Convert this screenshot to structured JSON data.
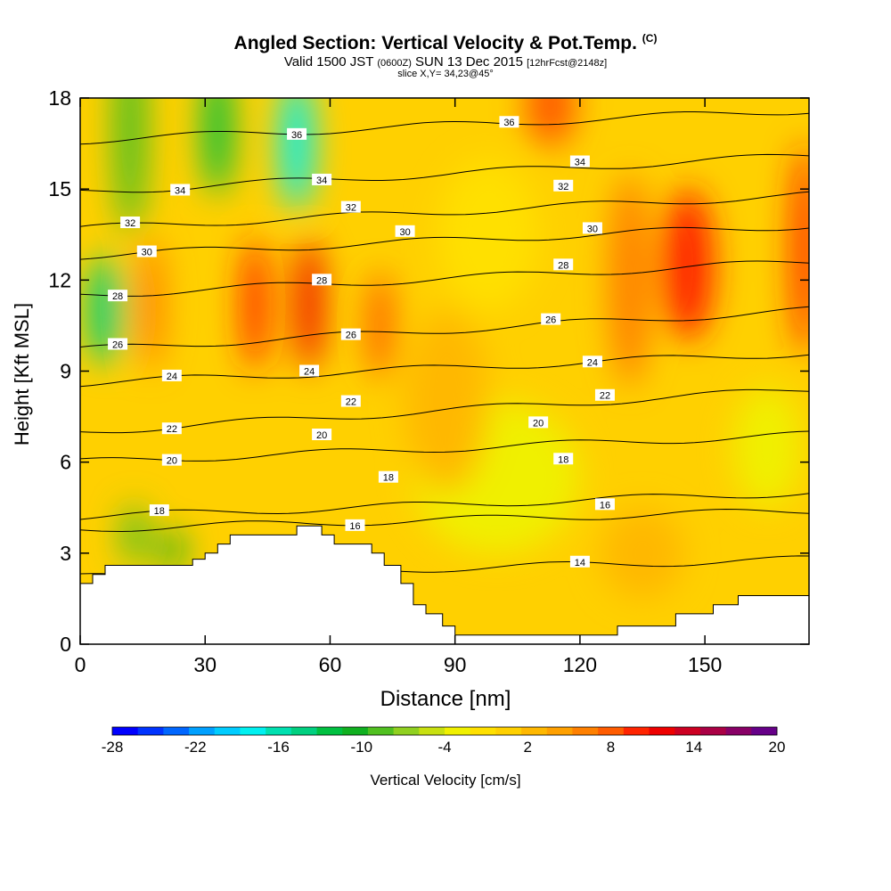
{
  "header": {
    "title": "Angled Section: Vertical Velocity & Pot.Temp.",
    "title_mark": "(C)",
    "valid_prefix": "Valid 1500 JST",
    "valid_utc": "(0600Z)",
    "valid_date": "SUN 13 Dec 2015",
    "forecast_note": "[12hrFcst@2148z]",
    "slice_note": "slice X,Y= 34,23@45°"
  },
  "chart_data": {
    "type": "heatmap",
    "xlabel": "Distance [nm]",
    "ylabel": "Height [Kft MSL]",
    "xlim": [
      0,
      175
    ],
    "ylim": [
      0,
      18
    ],
    "x_ticks": [
      0,
      30,
      60,
      90,
      120,
      150
    ],
    "y_ticks": [
      0,
      3,
      6,
      9,
      12,
      15,
      18
    ],
    "colorbar": {
      "label": "Vertical Velocity [cm/s]",
      "range": [
        -28,
        20
      ],
      "tick_labels": [
        -28,
        -22,
        -16,
        -10,
        -4,
        2,
        8,
        14,
        20
      ],
      "colors": [
        "#0000ff",
        "#0033ff",
        "#0066ff",
        "#00a0ff",
        "#00ccff",
        "#00f0f0",
        "#00e0b0",
        "#00d080",
        "#00c040",
        "#10b020",
        "#50c020",
        "#90d020",
        "#c8e010",
        "#f0f000",
        "#ffe000",
        "#ffd000",
        "#ffb800",
        "#ffa000",
        "#ff8000",
        "#ff5c00",
        "#ff2400",
        "#ee0000",
        "#cc0022",
        "#aa0044",
        "#880066",
        "#660088"
      ]
    },
    "background_value": 0,
    "velocity_cells": [
      {
        "x": 6,
        "y": 11,
        "sx": 4,
        "sy": 1.8,
        "v": -14
      },
      {
        "x": 12,
        "y": 17,
        "sx": 4,
        "sy": 3.5,
        "v": -9
      },
      {
        "x": 33,
        "y": 17,
        "sx": 3.5,
        "sy": 2.2,
        "v": -12
      },
      {
        "x": 52,
        "y": 16.5,
        "sx": 4,
        "sy": 2.2,
        "v": -18
      },
      {
        "x": 13,
        "y": 3.6,
        "sx": 3,
        "sy": 1,
        "v": -9
      },
      {
        "x": 22,
        "y": 3.1,
        "sx": 3,
        "sy": 0.6,
        "v": -10
      },
      {
        "x": 17,
        "y": 11.2,
        "sx": 3,
        "sy": 2.2,
        "v": 7
      },
      {
        "x": 42,
        "y": 11.2,
        "sx": 3,
        "sy": 2.2,
        "v": 10
      },
      {
        "x": 55,
        "y": 11.2,
        "sx": 3,
        "sy": 2.2,
        "v": 11
      },
      {
        "x": 72,
        "y": 10.5,
        "sx": 3,
        "sy": 1.8,
        "v": 8
      },
      {
        "x": 113,
        "y": 17.8,
        "sx": 6,
        "sy": 1.4,
        "v": 8
      },
      {
        "x": 132,
        "y": 12,
        "sx": 5,
        "sy": 3.5,
        "v": 7
      },
      {
        "x": 146,
        "y": 12.5,
        "sx": 6,
        "sy": 2.5,
        "v": 10
      },
      {
        "x": 174,
        "y": 13,
        "sx": 3,
        "sy": 3.5,
        "v": 9
      },
      {
        "x": 98,
        "y": 13.5,
        "sx": 12,
        "sy": 2.5,
        "v": -2
      },
      {
        "x": 100,
        "y": 5.5,
        "sx": 20,
        "sy": 2.5,
        "v": -2.5
      },
      {
        "x": 135,
        "y": 3,
        "sx": 10,
        "sy": 1.5,
        "v": 3
      },
      {
        "x": 165,
        "y": 6.5,
        "sx": 8,
        "sy": 2,
        "v": -3
      },
      {
        "x": 88,
        "y": 8,
        "sx": 10,
        "sy": 3,
        "v": 2.5
      }
    ],
    "terrain": [
      [
        0,
        2
      ],
      [
        3,
        2
      ],
      [
        3,
        2.3
      ],
      [
        6,
        2.3
      ],
      [
        6,
        2.6
      ],
      [
        18,
        2.6
      ],
      [
        27,
        2.6
      ],
      [
        27,
        2.8
      ],
      [
        30,
        2.8
      ],
      [
        30,
        3.0
      ],
      [
        33,
        3.0
      ],
      [
        33,
        3.3
      ],
      [
        36,
        3.3
      ],
      [
        36,
        3.6
      ],
      [
        52,
        3.6
      ],
      [
        52,
        3.9
      ],
      [
        58,
        3.9
      ],
      [
        58,
        3.6
      ],
      [
        61,
        3.6
      ],
      [
        61,
        3.3
      ],
      [
        70,
        3.3
      ],
      [
        70,
        3.0
      ],
      [
        73,
        3.0
      ],
      [
        73,
        2.6
      ],
      [
        77,
        2.6
      ],
      [
        77,
        2.0
      ],
      [
        80,
        2.0
      ],
      [
        80,
        1.3
      ],
      [
        83,
        1.3
      ],
      [
        83,
        1.0
      ],
      [
        87,
        1.0
      ],
      [
        87,
        0.6
      ],
      [
        90,
        0.6
      ],
      [
        90,
        0.3
      ],
      [
        129,
        0.3
      ],
      [
        129,
        0.6
      ],
      [
        143,
        0.6
      ],
      [
        143,
        1.0
      ],
      [
        152,
        1.0
      ],
      [
        152,
        1.3
      ],
      [
        158,
        1.3
      ],
      [
        158,
        1.6
      ],
      [
        175,
        1.6
      ]
    ],
    "theta_contours": [
      {
        "value": 14,
        "h0": 2.2,
        "h1": 2.8,
        "label_x": 120
      },
      {
        "value": 16,
        "h0": 3.8,
        "h1": 4.4,
        "label_x": 66
      },
      {
        "value": 18,
        "h0": 4.2,
        "h1": 5.0,
        "label_x": 19
      },
      {
        "value": 20,
        "h0": 6.0,
        "h1": 6.9,
        "label_x": 22
      },
      {
        "value": 22,
        "h0": 7.0,
        "h1": 8.4,
        "label_x": 22
      },
      {
        "value": 24,
        "h0": 8.6,
        "h1": 9.6,
        "label_x": 22
      },
      {
        "value": 26,
        "h0": 9.7,
        "h1": 11.0,
        "label_x": 9
      },
      {
        "value": 28,
        "h0": 11.5,
        "h1": 12.6,
        "label_x": 9
      },
      {
        "value": 30,
        "h0": 12.8,
        "h1": 13.8,
        "label_x": 16
      },
      {
        "value": 32,
        "h0": 13.7,
        "h1": 14.8,
        "label_x": 12
      },
      {
        "value": 34,
        "h0": 14.9,
        "h1": 16.1,
        "label_x": 24
      },
      {
        "value": 36,
        "h0": 16.6,
        "h1": 17.6,
        "label_x": 52
      }
    ],
    "extra_labels": [
      {
        "text": "18",
        "x": 74,
        "y": 5.5
      },
      {
        "text": "16",
        "x": 126,
        "y": 4.6
      },
      {
        "text": "18",
        "x": 116,
        "y": 6.1
      },
      {
        "text": "20",
        "x": 58,
        "y": 6.9
      },
      {
        "text": "20",
        "x": 110,
        "y": 7.3
      },
      {
        "text": "22",
        "x": 65,
        "y": 8.0
      },
      {
        "text": "22",
        "x": 126,
        "y": 8.2
      },
      {
        "text": "24",
        "x": 55,
        "y": 9.0
      },
      {
        "text": "24",
        "x": 123,
        "y": 9.3
      },
      {
        "text": "26",
        "x": 65,
        "y": 10.2
      },
      {
        "text": "26",
        "x": 113,
        "y": 10.7
      },
      {
        "text": "28",
        "x": 58,
        "y": 12.0
      },
      {
        "text": "28",
        "x": 116,
        "y": 12.5
      },
      {
        "text": "30",
        "x": 78,
        "y": 13.6
      },
      {
        "text": "30",
        "x": 123,
        "y": 13.7
      },
      {
        "text": "32",
        "x": 65,
        "y": 14.4
      },
      {
        "text": "32",
        "x": 116,
        "y": 15.1
      },
      {
        "text": "34",
        "x": 58,
        "y": 15.3
      },
      {
        "text": "34",
        "x": 120,
        "y": 15.9
      },
      {
        "text": "36",
        "x": 103,
        "y": 17.2
      }
    ]
  }
}
